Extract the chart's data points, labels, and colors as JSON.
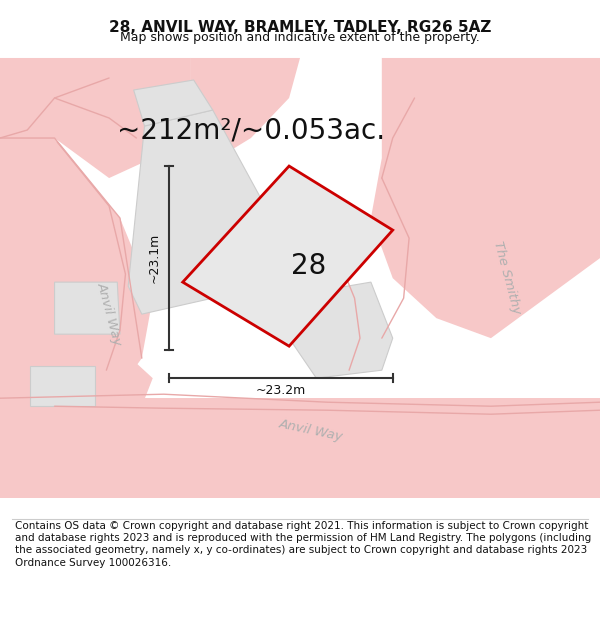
{
  "title": "28, ANVIL WAY, BRAMLEY, TADLEY, RG26 5AZ",
  "subtitle": "Map shows position and indicative extent of the property.",
  "area_text": "~212m²/~0.053ac.",
  "property_number": "28",
  "dim_horizontal": "~23.2m",
  "dim_vertical": "~23.1m",
  "footer": "Contains OS data © Crown copyright and database right 2021. This information is subject to Crown copyright and database rights 2023 and is reproduced with the permission of HM Land Registry. The polygons (including the associated geometry, namely x, y co-ordinates) are subject to Crown copyright and database rights 2023 Ordnance Survey 100026316.",
  "bg_color": "#ffffff",
  "road_fill": "#f7c8c8",
  "road_edge": "#e8a8a8",
  "building_fill": "#e2e2e2",
  "building_edge": "#cccccc",
  "property_fill": "#e8e8e8",
  "property_outline": "#cc0000",
  "dim_color": "#333333",
  "road_label_color": "#b0b0b0",
  "title_fontsize": 11,
  "subtitle_fontsize": 9,
  "area_fontsize": 20,
  "number_fontsize": 20,
  "dim_fontsize": 9,
  "footer_fontsize": 7.5,
  "road_label_fontsize": 9.5
}
